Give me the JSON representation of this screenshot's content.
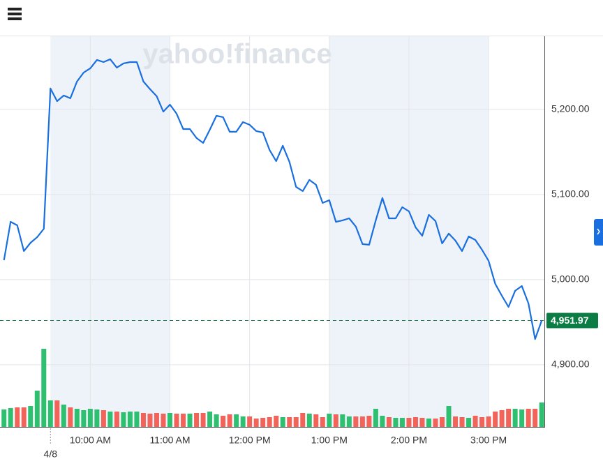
{
  "chart_data": {
    "type": "line",
    "watermark": "yahoo!finance",
    "x": [
      535,
      540,
      545,
      550,
      555,
      560,
      565,
      570,
      575,
      580,
      585,
      590,
      595,
      600,
      605,
      610,
      615,
      620,
      625,
      630,
      635,
      640,
      645,
      650,
      655,
      660,
      665,
      670,
      675,
      680,
      685,
      690,
      695,
      700,
      705,
      710,
      715,
      720,
      725,
      730,
      735,
      740,
      745,
      750,
      755,
      760,
      765,
      770,
      775,
      780,
      785,
      790,
      795,
      800,
      805,
      810,
      815,
      820,
      825,
      830,
      835,
      840,
      845,
      850,
      855,
      860,
      865,
      870,
      875,
      880,
      885,
      890,
      895,
      900,
      905,
      910,
      915,
      920,
      925,
      930,
      935,
      940
    ],
    "series": [
      {
        "color": "#1a6fe0",
        "values": [
          5022.9,
          5068.0,
          5063.9,
          5033.6,
          5043.4,
          5050.0,
          5059.8,
          5224.6,
          5209.8,
          5216.4,
          5213.1,
          5232.8,
          5243.4,
          5248.4,
          5258.2,
          5255.7,
          5259.0,
          5249.2,
          5254.1,
          5255.7,
          5255.7,
          5232.8,
          5223.8,
          5215.6,
          5197.5,
          5205.7,
          5195.1,
          5177.0,
          5177.0,
          5166.4,
          5160.7,
          5176.2,
          5192.6,
          5191.0,
          5173.8,
          5173.8,
          5185.2,
          5182.0,
          5174.6,
          5173.0,
          5152.5,
          5139.3,
          5157.4,
          5138.5,
          5109.0,
          5104.1,
          5117.2,
          5111.5,
          5090.2,
          5093.4,
          5068.0,
          5069.7,
          5072.1,
          5062.3,
          5041.8,
          5041.0,
          5069.7,
          5095.9,
          5072.1,
          5072.1,
          5085.2,
          5080.3,
          5061.5,
          5051.6,
          5076.2,
          5068.9,
          5042.6,
          5054.1,
          5045.9,
          5033.6,
          5050.8,
          5046.7,
          5035.2,
          5022.1,
          4995.1,
          4981.1,
          4968.0,
          4986.9,
          4992.6,
          4972.1,
          4930.3,
          4951.97
        ]
      }
    ],
    "volume": {
      "up_color": "#2fbf71",
      "down_color": "#f2645a",
      "values": [
        25,
        27,
        28,
        28,
        30,
        52,
        112,
        38,
        38,
        32,
        28,
        26,
        24,
        26,
        25,
        24,
        22,
        22,
        21,
        22,
        22,
        20,
        19,
        20,
        19,
        20,
        19,
        19,
        19,
        20,
        20,
        22,
        18,
        16,
        18,
        18,
        15,
        15,
        12,
        13,
        14,
        16,
        14,
        14,
        14,
        20,
        19,
        18,
        14,
        19,
        18,
        18,
        15,
        15,
        15,
        16,
        26,
        16,
        14,
        13,
        13,
        13,
        14,
        13,
        12,
        12,
        14,
        30,
        15,
        14,
        13,
        16,
        14,
        15,
        22,
        24,
        26,
        26,
        25,
        26,
        26,
        35
      ]
    },
    "xlim": [
      532,
      942
    ],
    "xticks": [
      {
        "value": 600,
        "label": "10:00 AM"
      },
      {
        "value": 660,
        "label": "11:00 AM"
      },
      {
        "value": 720,
        "label": "12:00 PM"
      },
      {
        "value": 780,
        "label": "1:00 PM"
      },
      {
        "value": 840,
        "label": "2:00 PM"
      },
      {
        "value": 900,
        "label": "3:00 PM"
      }
    ],
    "date_marker": {
      "value": 570,
      "label": "4/8"
    },
    "ylim": [
      4827,
      5286
    ],
    "yticks": [
      {
        "value": 4900,
        "label": "4,900.00"
      },
      {
        "value": 5000,
        "label": "5,000.00"
      },
      {
        "value": 5100,
        "label": "5,100.00"
      },
      {
        "value": 5200,
        "label": "5,200.00"
      }
    ],
    "last": {
      "value": 4951.97,
      "label": "4,951.97",
      "color": "#0b7d44"
    },
    "grid": true
  }
}
